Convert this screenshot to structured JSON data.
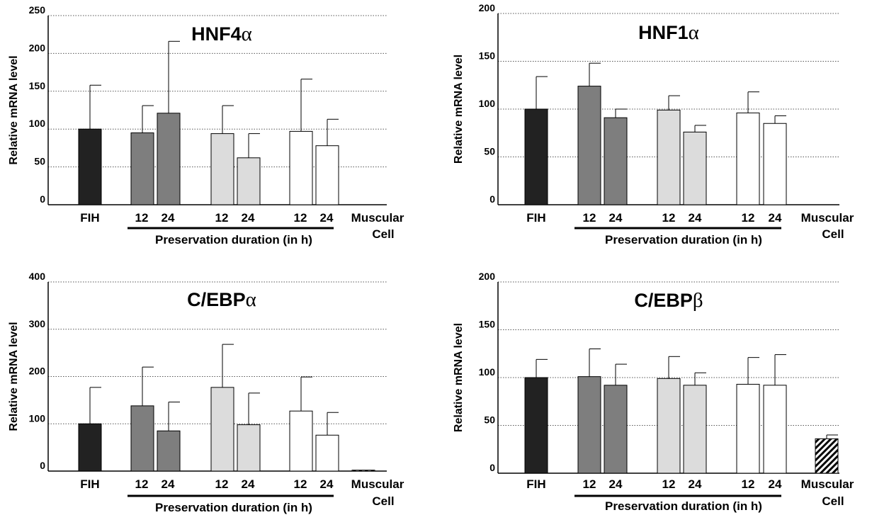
{
  "colors": {
    "FIH": "#222222",
    "dark_gray": "#7e7e7e",
    "light_gray": "#dcdcdc",
    "white": "#ffffff",
    "muscular": "hatched"
  },
  "chart_data": [
    {
      "type": "bar",
      "title_main": "HNF4",
      "title_greek": "α",
      "ylabel": "Relative mRNA level",
      "yticks": [
        0,
        50,
        100,
        150,
        200,
        250
      ],
      "ylim": [
        0,
        250
      ],
      "grid": "horizontal dotted",
      "x_labels": [
        "FIH",
        "12",
        "24",
        "12",
        "24",
        "12",
        "24",
        "Muscular",
        "Cell"
      ],
      "x_group_label": "Preservation duration (in h)",
      "bars": [
        {
          "category": "FIH",
          "value": 100,
          "error": 58,
          "fill": "FIH"
        },
        {
          "category": "12",
          "value": 95,
          "error": 36,
          "fill": "dark_gray"
        },
        {
          "category": "24",
          "value": 121,
          "error": 95,
          "fill": "dark_gray"
        },
        {
          "category": "12",
          "value": 94,
          "error": 37,
          "fill": "light_gray"
        },
        {
          "category": "24",
          "value": 62,
          "error": 32,
          "fill": "light_gray"
        },
        {
          "category": "12",
          "value": 97,
          "error": 69,
          "fill": "white"
        },
        {
          "category": "24",
          "value": 78,
          "error": 35,
          "fill": "white"
        },
        {
          "category": "Muscular Cell",
          "value": 0,
          "error": 0,
          "fill": "muscular"
        }
      ]
    },
    {
      "type": "bar",
      "title_main": "HNF1",
      "title_greek": "α",
      "ylabel": "Relative mRNA level",
      "yticks": [
        0,
        50,
        100,
        150,
        200
      ],
      "ylim": [
        0,
        200
      ],
      "grid": "horizontal dotted",
      "x_labels": [
        "FIH",
        "12",
        "24",
        "12",
        "24",
        "12",
        "24",
        "Muscular",
        "Cell"
      ],
      "x_group_label": "Preservation duration (in h)",
      "bars": [
        {
          "category": "FIH",
          "value": 100,
          "error": 34,
          "fill": "FIH"
        },
        {
          "category": "12",
          "value": 124,
          "error": 24,
          "fill": "dark_gray"
        },
        {
          "category": "24",
          "value": 91,
          "error": 9,
          "fill": "dark_gray"
        },
        {
          "category": "12",
          "value": 99,
          "error": 15,
          "fill": "light_gray"
        },
        {
          "category": "24",
          "value": 76,
          "error": 7,
          "fill": "light_gray"
        },
        {
          "category": "12",
          "value": 96,
          "error": 22,
          "fill": "white"
        },
        {
          "category": "24",
          "value": 85,
          "error": 8,
          "fill": "white"
        },
        {
          "category": "Muscular Cell",
          "value": 0,
          "error": 0,
          "fill": "muscular"
        }
      ]
    },
    {
      "type": "bar",
      "title_main": "C/EBP",
      "title_greek": "α",
      "ylabel": "Relative mRNA level",
      "yticks": [
        0,
        100,
        200,
        300,
        400
      ],
      "ylim": [
        0,
        400
      ],
      "grid": "horizontal dotted",
      "x_labels": [
        "FIH",
        "12",
        "24",
        "12",
        "24",
        "12",
        "24",
        "Muscular",
        "Cell"
      ],
      "x_group_label": "Preservation duration (in h)",
      "bars": [
        {
          "category": "FIH",
          "value": 100,
          "error": 77,
          "fill": "FIH"
        },
        {
          "category": "12",
          "value": 138,
          "error": 82,
          "fill": "dark_gray"
        },
        {
          "category": "24",
          "value": 85,
          "error": 61,
          "fill": "dark_gray"
        },
        {
          "category": "12",
          "value": 177,
          "error": 91,
          "fill": "light_gray"
        },
        {
          "category": "24",
          "value": 98,
          "error": 67,
          "fill": "light_gray"
        },
        {
          "category": "12",
          "value": 127,
          "error": 72,
          "fill": "white"
        },
        {
          "category": "24",
          "value": 76,
          "error": 48,
          "fill": "white"
        },
        {
          "category": "Muscular Cell",
          "value": 2,
          "error": 0,
          "fill": "muscular"
        }
      ]
    },
    {
      "type": "bar",
      "title_main": "C/EBP",
      "title_greek": "β",
      "ylabel": "Relative mRNA level",
      "yticks": [
        0,
        50,
        100,
        150,
        200
      ],
      "ylim": [
        0,
        200
      ],
      "grid": "horizontal dotted",
      "x_labels": [
        "FIH",
        "12",
        "24",
        "12",
        "24",
        "12",
        "24",
        "Muscular",
        "Cell"
      ],
      "x_group_label": "Preservation duration (in h)",
      "bars": [
        {
          "category": "FIH",
          "value": 100,
          "error": 19,
          "fill": "FIH"
        },
        {
          "category": "12",
          "value": 101,
          "error": 29,
          "fill": "dark_gray"
        },
        {
          "category": "24",
          "value": 92,
          "error": 22,
          "fill": "dark_gray"
        },
        {
          "category": "12",
          "value": 99,
          "error": 23,
          "fill": "light_gray"
        },
        {
          "category": "24",
          "value": 92,
          "error": 13,
          "fill": "light_gray"
        },
        {
          "category": "12",
          "value": 93,
          "error": 28,
          "fill": "white"
        },
        {
          "category": "24",
          "value": 92,
          "error": 32,
          "fill": "white"
        },
        {
          "category": "Muscular Cell",
          "value": 36,
          "error": 4,
          "fill": "muscular"
        }
      ]
    }
  ]
}
